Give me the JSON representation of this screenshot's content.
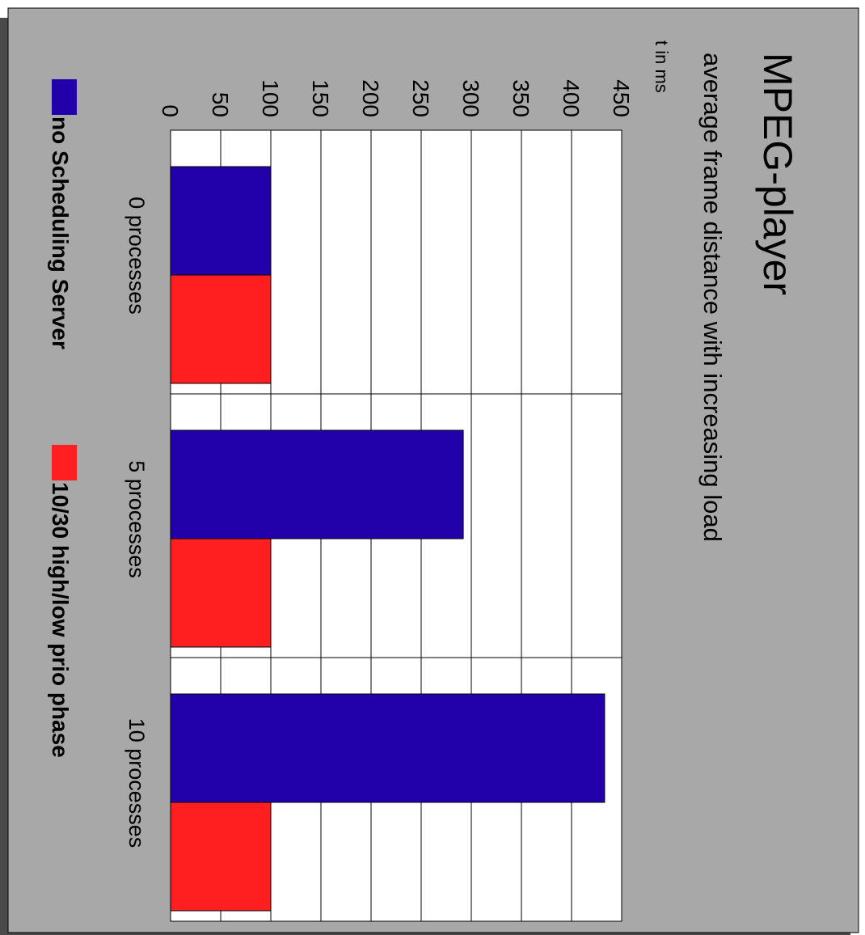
{
  "colors": {
    "slide_bg": "#a8a8a8",
    "shadow": "#4a4a4a",
    "plot_bg": "#ffffff",
    "grid": "#000000"
  },
  "chart_data": {
    "type": "bar",
    "orientation": "rotated-90-clockwise",
    "title": "MPEG-player",
    "subtitle": "average frame distance with increasing load",
    "ylabel": "t in ms",
    "xlabel": "",
    "categories": [
      "0 processes",
      "5 processes",
      "10 processes"
    ],
    "series": [
      {
        "name": "no Scheduling Server",
        "color": "#2200aa",
        "values": [
          100,
          292,
          433
        ]
      },
      {
        "name": "10/30 high/low prio phase",
        "color": "#ff1e20",
        "values": [
          100,
          100,
          100
        ]
      }
    ],
    "ylim": [
      0,
      450
    ],
    "yticks": [
      "0",
      "50",
      "100",
      "150",
      "200",
      "250",
      "300",
      "350",
      "400",
      "450"
    ],
    "grid": true,
    "legend_position": "bottom"
  }
}
